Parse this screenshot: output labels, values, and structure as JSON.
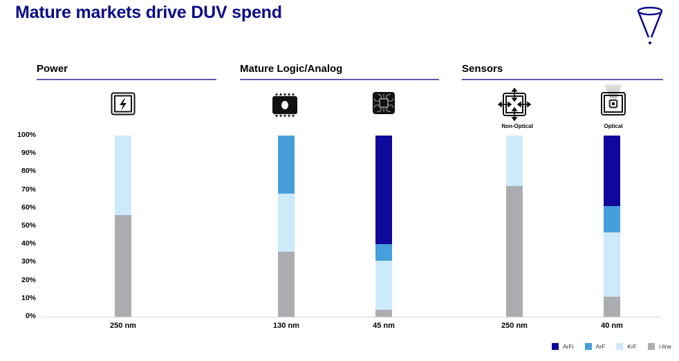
{
  "title": "Mature markets drive DUV spend",
  "logo_icon": "funnel-icon",
  "sections": [
    {
      "label": "Power",
      "icons": [
        {
          "name": "power-bolt-icon",
          "label": ""
        }
      ]
    },
    {
      "label": "Mature Logic/Analog",
      "icons": [
        {
          "name": "memory-chip-icon",
          "label": ""
        },
        {
          "name": "processor-chip-icon",
          "label": ""
        }
      ]
    },
    {
      "label": "Sensors",
      "icons": [
        {
          "name": "non-optical-sensor-icon",
          "label": "Non-Optical"
        },
        {
          "name": "optical-sensor-icon",
          "label": "Optical"
        }
      ]
    }
  ],
  "chart_data": {
    "type": "bar",
    "stacked": true,
    "normalized": true,
    "title": "",
    "xlabel": "",
    "ylabel": "",
    "ylim": [
      0,
      100
    ],
    "yticks": [
      "0%",
      "10%",
      "20%",
      "30%",
      "40%",
      "50%",
      "60%",
      "70%",
      "80%",
      "90%",
      "100%"
    ],
    "categories": [
      "250 nm",
      "130 nm",
      "45 nm",
      "250 nm",
      "40 nm"
    ],
    "groups": [
      "Power",
      "Mature Logic/Analog",
      "Mature Logic/Analog",
      "Sensors (Non-Optical)",
      "Sensors (Optical)"
    ],
    "series": [
      {
        "name": "i-line",
        "color": "#acadb1",
        "values": [
          56,
          36,
          4,
          72,
          11
        ]
      },
      {
        "name": "KrF",
        "color": "#cdeafb",
        "values": [
          44,
          32,
          27,
          28,
          35.5
        ]
      },
      {
        "name": "ArF",
        "color": "#469fdb",
        "values": [
          0,
          32,
          9,
          0,
          14.5
        ]
      },
      {
        "name": "ArFi",
        "color": "#10089a",
        "values": [
          0,
          0,
          60,
          0,
          39
        ]
      }
    ],
    "legend": {
      "position": "bottom-right",
      "order": [
        "ArFi",
        "ArF",
        "KrF",
        "i-line"
      ]
    },
    "grid": false
  }
}
